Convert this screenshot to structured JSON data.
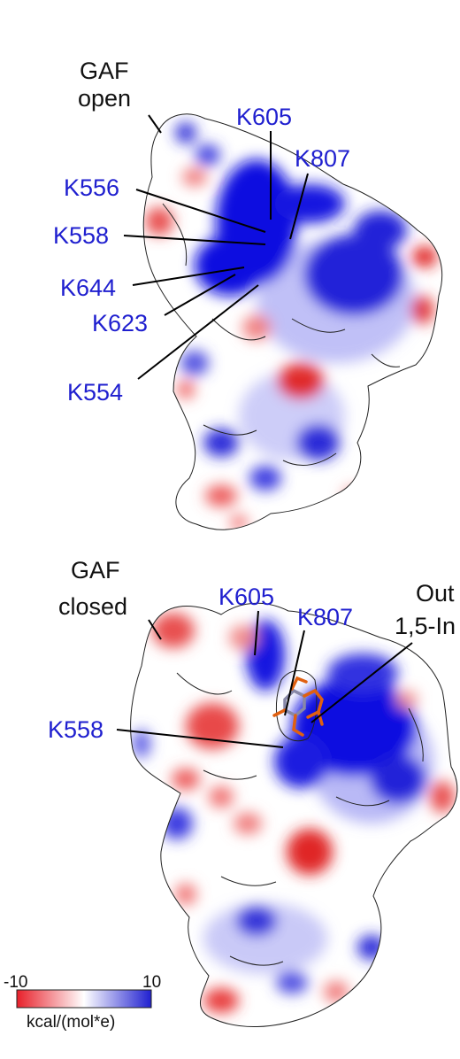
{
  "panels": [
    {
      "state_label_line1": "GAF",
      "state_label_line2": "open",
      "residues": {
        "k605": "K605",
        "k807": "K807",
        "k556": "K556",
        "k558": "K558",
        "k644": "K644",
        "k623": "K623",
        "k554": "K554"
      }
    },
    {
      "state_label_line1": "GAF",
      "state_label_line2": "closed",
      "residues": {
        "k605": "K605",
        "k807": "K807",
        "k558": "K558"
      },
      "ligand_label_line1": "Out",
      "ligand_label_line2": "1,5-In"
    }
  ],
  "colorbar": {
    "min_label": "-10",
    "max_label": "10",
    "unit_label": "kcal/(mol*e)",
    "colors": {
      "negative": "#e8202a",
      "neutral": "#ffffff",
      "positive": "#2020d0"
    }
  },
  "colors": {
    "residue_label": "#1f1fcf",
    "state_label": "#111111",
    "ligand": "#e06010"
  }
}
